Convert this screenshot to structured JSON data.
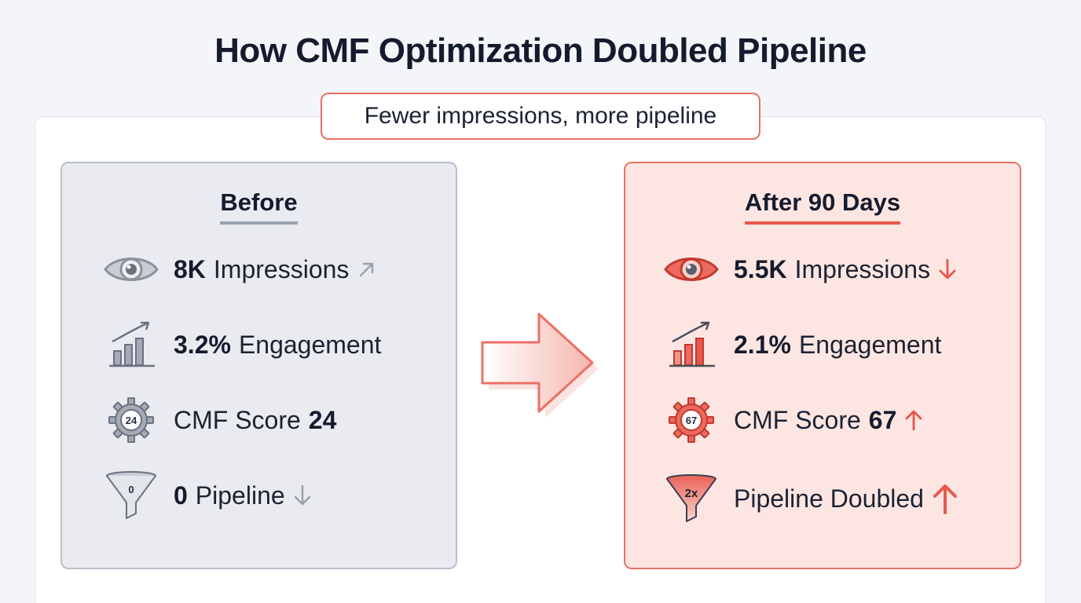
{
  "title": "How CMF Optimization Doubled Pipeline",
  "tagline": "Fewer impressions, more pipeline",
  "before": {
    "heading": "Before",
    "impressions": {
      "value": "8K",
      "label": "Impressions",
      "trend_icon": "arrow-up-right-icon"
    },
    "engagement": {
      "value": "3.2%",
      "label": "Engagement"
    },
    "cmf": {
      "label": "CMF Score",
      "value": "24",
      "icon_text": "24"
    },
    "pipeline": {
      "value": "0",
      "label": "Pipeline",
      "icon_text": "0",
      "trend_icon": "arrow-down-icon"
    }
  },
  "after": {
    "heading": "After 90 Days",
    "impressions": {
      "value": "5.5K",
      "label": "Impressions",
      "trend_icon": "arrow-down-icon"
    },
    "engagement": {
      "value": "2.1%",
      "label": "Engagement"
    },
    "cmf": {
      "label": "CMF Score",
      "value": "67",
      "icon_text": "67",
      "trend_icon": "arrow-up-icon"
    },
    "pipeline": {
      "label": "Pipeline Doubled",
      "icon_text": "2x",
      "trend_icon": "arrow-up-icon"
    }
  },
  "colors": {
    "accent": "#e9564b",
    "before_bg": "#e9ebf0",
    "after_bg": "#fde6e2",
    "muted": "#9aa1ae"
  }
}
